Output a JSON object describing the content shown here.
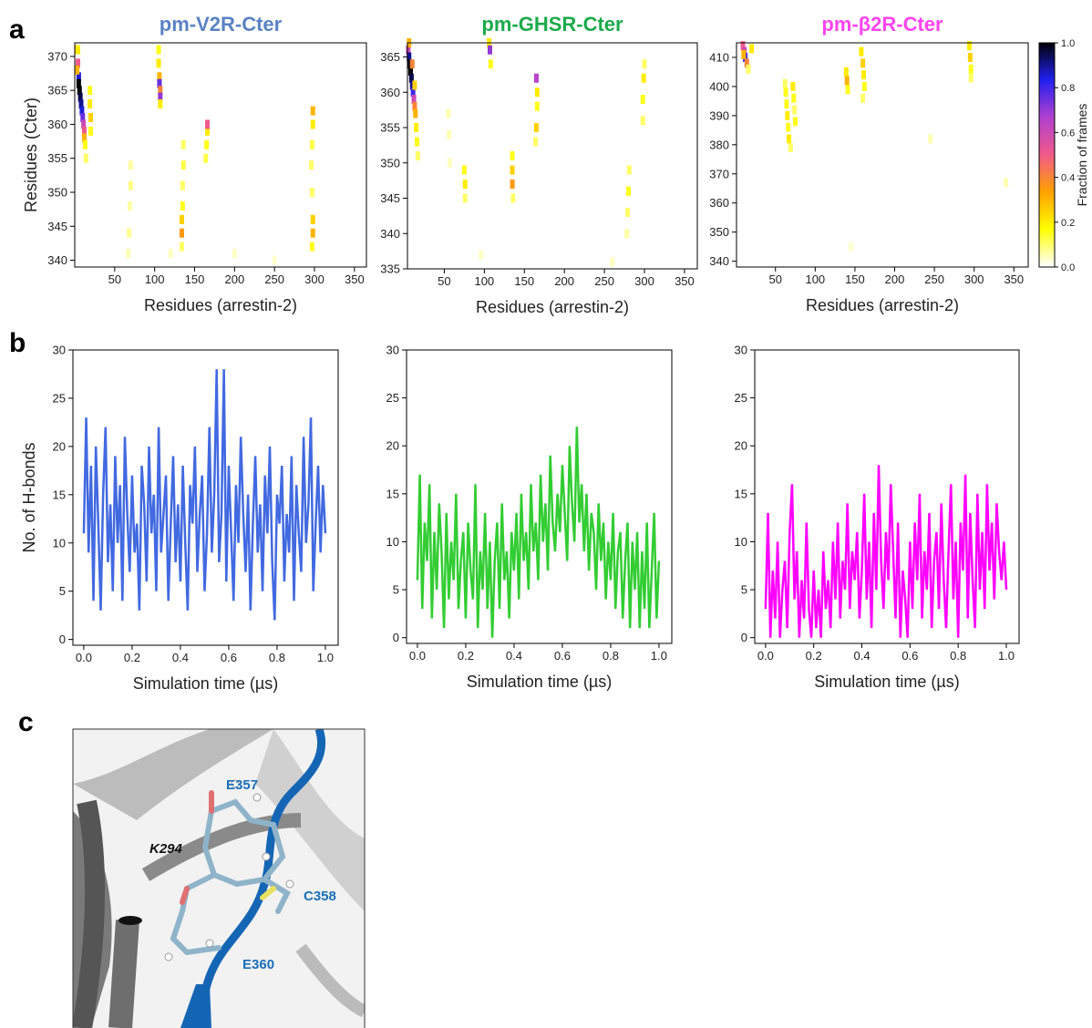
{
  "panel_labels": [
    "a",
    "b",
    "c"
  ],
  "structure_labels": [
    "E357",
    "K294",
    "C358",
    "E360"
  ],
  "chart_data": [
    {
      "type": "heatmap",
      "title": "pm-V2R-Cter",
      "title_color": "#5a82c4",
      "xlabel": "Residues (arrestin-2)",
      "ylabel": "Residues (Cter)",
      "colormap": [
        "#ffffff",
        "#ffff00",
        "#ffa000",
        "#f05a8c",
        "#b040d0",
        "#2020f0",
        "#000000"
      ],
      "xlim": [
        0,
        365
      ],
      "ylim": [
        339,
        372
      ],
      "xticks": [
        50,
        100,
        150,
        200,
        250,
        300,
        350
      ],
      "yticks": [
        340,
        345,
        350,
        355,
        360,
        365,
        370
      ],
      "x": [
        3,
        4,
        5,
        5,
        6,
        7,
        8,
        9,
        10,
        11,
        12,
        12,
        13,
        14,
        4,
        3,
        19,
        19,
        20,
        20,
        105,
        105,
        106,
        106,
        107,
        107,
        107,
        70,
        70,
        69,
        68,
        67,
        136,
        136,
        135,
        135,
        134,
        134,
        134,
        166,
        166,
        165,
        164,
        298,
        298,
        297,
        296,
        297,
        298,
        298,
        297,
        200,
        250,
        120
      ],
      "y": [
        371,
        369,
        367,
        366,
        365,
        364,
        363,
        362,
        361,
        360,
        359,
        358,
        357,
        355,
        371,
        368,
        365,
        363,
        361,
        359,
        371,
        369,
        367,
        366,
        365,
        364,
        363,
        354,
        351,
        348,
        344,
        341,
        357,
        354,
        351,
        348,
        346,
        344,
        342,
        359,
        360,
        357,
        355,
        362,
        360,
        357,
        354,
        350,
        346,
        344,
        342,
        341,
        340,
        341
      ],
      "values": [
        0.3,
        0.5,
        0.85,
        1.0,
        1.0,
        0.95,
        0.9,
        0.85,
        0.75,
        0.6,
        0.5,
        0.3,
        0.15,
        0.1,
        0.2,
        0.3,
        0.15,
        0.2,
        0.25,
        0.15,
        0.15,
        0.2,
        0.3,
        0.75,
        0.4,
        0.7,
        0.2,
        0.06,
        0.08,
        0.06,
        0.07,
        0.05,
        0.1,
        0.12,
        0.1,
        0.15,
        0.25,
        0.35,
        0.1,
        0.2,
        0.5,
        0.15,
        0.12,
        0.3,
        0.2,
        0.12,
        0.1,
        0.1,
        0.25,
        0.3,
        0.15,
        0.04,
        0.03,
        0.04
      ]
    },
    {
      "type": "heatmap",
      "title": "pm-GHSR-Cter",
      "title_color": "#1aaa4a",
      "xlabel": "Residues (arrestin-2)",
      "colormap": [
        "#ffffff",
        "#ffff00",
        "#ffa000",
        "#f05a8c",
        "#b040d0",
        "#2020f0",
        "#000000"
      ],
      "xlim": [
        4,
        366
      ],
      "ylim": [
        335,
        367
      ],
      "xticks": [
        50,
        100,
        150,
        200,
        250,
        300,
        350
      ],
      "yticks": [
        335,
        340,
        345,
        350,
        355,
        360,
        365
      ],
      "x": [
        5,
        6,
        7,
        8,
        9,
        10,
        11,
        12,
        13,
        14,
        15,
        16,
        17,
        6,
        10,
        13,
        106,
        107,
        108,
        55,
        56,
        57,
        75,
        76,
        76,
        135,
        135,
        135,
        136,
        165,
        166,
        166,
        165,
        164,
        281,
        280,
        279,
        278,
        300,
        299,
        298,
        298,
        96,
        260
      ],
      "y": [
        366,
        365,
        364,
        363,
        362,
        361,
        360,
        359,
        358,
        357,
        355,
        353,
        351,
        367,
        364,
        361,
        367,
        366,
        364,
        357,
        354,
        350,
        349,
        347,
        345,
        351,
        349,
        347,
        345,
        362,
        360,
        358,
        355,
        353,
        349,
        346,
        343,
        340,
        364,
        362,
        359,
        356,
        337,
        336
      ],
      "values": [
        0.6,
        0.9,
        1.0,
        1.0,
        0.95,
        0.9,
        0.8,
        0.6,
        0.4,
        0.3,
        0.2,
        0.15,
        0.1,
        0.3,
        0.4,
        0.25,
        0.2,
        0.7,
        0.15,
        0.05,
        0.05,
        0.04,
        0.15,
        0.2,
        0.1,
        0.15,
        0.25,
        0.35,
        0.1,
        0.65,
        0.2,
        0.15,
        0.25,
        0.1,
        0.1,
        0.15,
        0.1,
        0.06,
        0.1,
        0.2,
        0.15,
        0.1,
        0.04,
        0.04
      ]
    },
    {
      "type": "heatmap",
      "title": "pm-β2R-Cter",
      "title_color": "#ff44ee",
      "xlabel": "Residues (arrestin-2)",
      "colormap": [
        "#ffffff",
        "#ffff00",
        "#ffa000",
        "#f05a8c",
        "#b040d0",
        "#2020f0",
        "#000000"
      ],
      "xlim": [
        1,
        368
      ],
      "ylim": [
        338,
        415
      ],
      "xticks": [
        50,
        100,
        150,
        200,
        250,
        300,
        350
      ],
      "yticks": [
        340,
        350,
        360,
        370,
        380,
        390,
        400,
        410
      ],
      "x": [
        9,
        11,
        12,
        14,
        10,
        20,
        16,
        62,
        63,
        64,
        65,
        66,
        67,
        69,
        72,
        73,
        74,
        75,
        139,
        140,
        141,
        158,
        160,
        161,
        162,
        160,
        294,
        295,
        296,
        296,
        245,
        340,
        145
      ],
      "y": [
        414,
        412,
        410,
        408,
        411,
        413,
        406,
        401,
        398,
        394,
        390,
        386,
        382,
        379,
        400,
        396,
        392,
        388,
        405,
        402,
        399,
        412,
        408,
        404,
        400,
        396,
        414,
        410,
        406,
        403,
        382,
        367,
        345
      ],
      "values": [
        0.5,
        0.6,
        0.8,
        0.4,
        0.3,
        0.2,
        0.1,
        0.1,
        0.15,
        0.15,
        0.2,
        0.15,
        0.2,
        0.1,
        0.2,
        0.15,
        0.1,
        0.15,
        0.2,
        0.3,
        0.15,
        0.2,
        0.25,
        0.2,
        0.15,
        0.1,
        0.2,
        0.25,
        0.15,
        0.1,
        0.05,
        0.05,
        0.03
      ],
      "colorbar": {
        "label": "Fraction of frames",
        "lim": [
          0,
          1
        ],
        "ticks": [
          {
            "value": 0,
            "label": "0.0"
          },
          {
            "value": 0.2,
            "label": "0.2"
          },
          {
            "value": 0.4,
            "label": "0.4"
          },
          {
            "value": 0.6,
            "label": "0.6"
          },
          {
            "value": 0.8,
            "label": "0.8"
          },
          {
            "value": 1,
            "label": "1.0"
          }
        ]
      }
    },
    {
      "type": "line",
      "color": "#4169e1",
      "xlabel": "Simulation time (µs)",
      "ylabel": "No. of H-bonds",
      "xlim": [
        -0.045,
        1.053
      ],
      "ylim": [
        -0.6,
        30
      ],
      "xticks": [
        {
          "value": 0,
          "label": "0.0"
        },
        {
          "value": 0.2,
          "label": "0.2"
        },
        {
          "value": 0.4,
          "label": "0.4"
        },
        {
          "value": 0.6,
          "label": "0.6"
        },
        {
          "value": 0.8,
          "label": "0.8"
        },
        {
          "value": 1,
          "label": "1.0"
        }
      ],
      "yticks": [
        0,
        5,
        10,
        15,
        20,
        25,
        30
      ],
      "x": [
        0,
        0.01,
        0.02,
        0.03,
        0.04,
        0.05,
        0.06,
        0.07,
        0.08,
        0.09,
        0.1,
        0.11,
        0.12,
        0.13,
        0.14,
        0.15,
        0.16,
        0.17,
        0.18,
        0.19,
        0.2,
        0.21,
        0.22,
        0.23,
        0.24,
        0.25,
        0.26,
        0.27,
        0.28,
        0.29,
        0.3,
        0.31,
        0.32,
        0.33,
        0.34,
        0.35,
        0.36,
        0.37,
        0.38,
        0.39,
        0.4,
        0.41,
        0.42,
        0.43,
        0.44,
        0.45,
        0.46,
        0.47,
        0.48,
        0.49,
        0.5,
        0.51,
        0.52,
        0.53,
        0.54,
        0.55,
        0.56,
        0.57,
        0.58,
        0.59,
        0.6,
        0.61,
        0.62,
        0.63,
        0.64,
        0.65,
        0.66,
        0.67,
        0.68,
        0.69,
        0.7,
        0.71,
        0.72,
        0.73,
        0.74,
        0.75,
        0.76,
        0.77,
        0.78,
        0.79,
        0.8,
        0.81,
        0.82,
        0.83,
        0.84,
        0.85,
        0.86,
        0.87,
        0.88,
        0.89,
        0.9,
        0.91,
        0.92,
        0.93,
        0.94,
        0.95,
        0.96,
        0.97,
        0.98,
        0.99,
        1
      ],
      "values": [
        11,
        23,
        9,
        18,
        4,
        20,
        12,
        3,
        15,
        22,
        8,
        14,
        5,
        19,
        10,
        16,
        4,
        21,
        13,
        7,
        17,
        9,
        12,
        3,
        18,
        14,
        6,
        20,
        11,
        15,
        5,
        22,
        9,
        13,
        17,
        4,
        12,
        19,
        8,
        14,
        6,
        18,
        10,
        3,
        16,
        12,
        20,
        7,
        13,
        17,
        5,
        11,
        22,
        9,
        15,
        28,
        8,
        13,
        28,
        6,
        18,
        11,
        4,
        16,
        10,
        21,
        13,
        7,
        15,
        3,
        12,
        19,
        9,
        14,
        5,
        17,
        11,
        20,
        8,
        2,
        15,
        12,
        18,
        6,
        13,
        9,
        19,
        4,
        16,
        11,
        7,
        21,
        10,
        14,
        23,
        5,
        12,
        18,
        9,
        16,
        11
      ]
    },
    {
      "type": "line",
      "color": "#32cd32",
      "xlabel": "Simulation time (µs)",
      "xlim": [
        -0.045,
        1.053
      ],
      "ylim": [
        -0.6,
        30
      ],
      "xticks": [
        {
          "value": 0,
          "label": "0.0"
        },
        {
          "value": 0.2,
          "label": "0.2"
        },
        {
          "value": 0.4,
          "label": "0.4"
        },
        {
          "value": 0.6,
          "label": "0.6"
        },
        {
          "value": 0.8,
          "label": "0.8"
        },
        {
          "value": 1,
          "label": "1.0"
        }
      ],
      "yticks": [
        0,
        5,
        10,
        15,
        20,
        25,
        30
      ],
      "x": [
        0,
        0.01,
        0.02,
        0.03,
        0.04,
        0.05,
        0.06,
        0.07,
        0.08,
        0.09,
        0.1,
        0.11,
        0.12,
        0.13,
        0.14,
        0.15,
        0.16,
        0.17,
        0.18,
        0.19,
        0.2,
        0.21,
        0.22,
        0.23,
        0.24,
        0.25,
        0.26,
        0.27,
        0.28,
        0.29,
        0.3,
        0.31,
        0.32,
        0.33,
        0.34,
        0.35,
        0.36,
        0.37,
        0.38,
        0.39,
        0.4,
        0.41,
        0.42,
        0.43,
        0.44,
        0.45,
        0.46,
        0.47,
        0.48,
        0.49,
        0.5,
        0.51,
        0.52,
        0.53,
        0.54,
        0.55,
        0.56,
        0.57,
        0.58,
        0.59,
        0.6,
        0.61,
        0.62,
        0.63,
        0.64,
        0.65,
        0.66,
        0.67,
        0.68,
        0.69,
        0.7,
        0.71,
        0.72,
        0.73,
        0.74,
        0.75,
        0.76,
        0.77,
        0.78,
        0.79,
        0.8,
        0.81,
        0.82,
        0.83,
        0.84,
        0.85,
        0.86,
        0.87,
        0.88,
        0.89,
        0.9,
        0.91,
        0.92,
        0.93,
        0.94,
        0.95,
        0.96,
        0.97,
        0.98,
        0.99,
        1
      ],
      "values": [
        6,
        17,
        3,
        12,
        8,
        16,
        2,
        11,
        5,
        14,
        9,
        1,
        13,
        4,
        10,
        6,
        15,
        3,
        8,
        11,
        2,
        12,
        7,
        4,
        16,
        1,
        9,
        5,
        13,
        3,
        10,
        0,
        8,
        12,
        3,
        14,
        6,
        9,
        2,
        11,
        7,
        13,
        4,
        15,
        8,
        11,
        5,
        16,
        9,
        12,
        6,
        17,
        10,
        14,
        7,
        19,
        12,
        9,
        15,
        11,
        18,
        13,
        8,
        20,
        14,
        10,
        22,
        12,
        16,
        9,
        15,
        7,
        13,
        11,
        5,
        14,
        8,
        12,
        4,
        10,
        6,
        13,
        3,
        9,
        11,
        2,
        8,
        12,
        1,
        10,
        5,
        11,
        1,
        9,
        3,
        12,
        1,
        7,
        13,
        2,
        8
      ]
    },
    {
      "type": "line",
      "color": "#ff00ff",
      "xlabel": "Simulation time (µs)",
      "xlim": [
        -0.045,
        1.053
      ],
      "ylim": [
        -0.6,
        30
      ],
      "xticks": [
        {
          "value": 0,
          "label": "0.0"
        },
        {
          "value": 0.2,
          "label": "0.2"
        },
        {
          "value": 0.4,
          "label": "0.4"
        },
        {
          "value": 0.6,
          "label": "0.6"
        },
        {
          "value": 0.8,
          "label": "0.8"
        },
        {
          "value": 1,
          "label": "1.0"
        }
      ],
      "yticks": [
        0,
        5,
        10,
        15,
        20,
        25,
        30
      ],
      "x": [
        0,
        0.01,
        0.02,
        0.03,
        0.04,
        0.05,
        0.06,
        0.07,
        0.08,
        0.09,
        0.1,
        0.11,
        0.12,
        0.13,
        0.14,
        0.15,
        0.16,
        0.17,
        0.18,
        0.19,
        0.2,
        0.21,
        0.22,
        0.23,
        0.24,
        0.25,
        0.26,
        0.27,
        0.28,
        0.29,
        0.3,
        0.31,
        0.32,
        0.33,
        0.34,
        0.35,
        0.36,
        0.37,
        0.38,
        0.39,
        0.4,
        0.41,
        0.42,
        0.43,
        0.44,
        0.45,
        0.46,
        0.47,
        0.48,
        0.49,
        0.5,
        0.51,
        0.52,
        0.53,
        0.54,
        0.55,
        0.56,
        0.57,
        0.58,
        0.59,
        0.6,
        0.61,
        0.62,
        0.63,
        0.64,
        0.65,
        0.66,
        0.67,
        0.68,
        0.69,
        0.7,
        0.71,
        0.72,
        0.73,
        0.74,
        0.75,
        0.76,
        0.77,
        0.78,
        0.79,
        0.8,
        0.81,
        0.82,
        0.83,
        0.84,
        0.85,
        0.86,
        0.87,
        0.88,
        0.89,
        0.9,
        0.91,
        0.92,
        0.93,
        0.94,
        0.95,
        0.96,
        0.97,
        0.98,
        0.99,
        1
      ],
      "values": [
        3,
        13,
        0,
        7,
        2,
        10,
        0,
        5,
        8,
        1,
        11,
        16,
        4,
        9,
        0,
        6,
        2,
        12,
        3,
        0,
        7,
        1,
        5,
        0,
        9,
        3,
        6,
        1,
        10,
        4,
        12,
        2,
        8,
        5,
        14,
        3,
        9,
        6,
        11,
        2,
        7,
        15,
        4,
        10,
        1,
        13,
        5,
        18,
        8,
        3,
        11,
        6,
        16,
        9,
        2,
        12,
        0,
        7,
        4,
        0,
        10,
        3,
        12,
        6,
        15,
        2,
        9,
        5,
        13,
        1,
        8,
        11,
        3,
        14,
        6,
        1,
        9,
        16,
        4,
        10,
        0,
        12,
        7,
        17,
        2,
        13,
        6,
        1,
        15,
        5,
        11,
        3,
        16,
        7,
        12,
        4,
        14,
        9,
        6,
        10,
        5
      ]
    }
  ]
}
